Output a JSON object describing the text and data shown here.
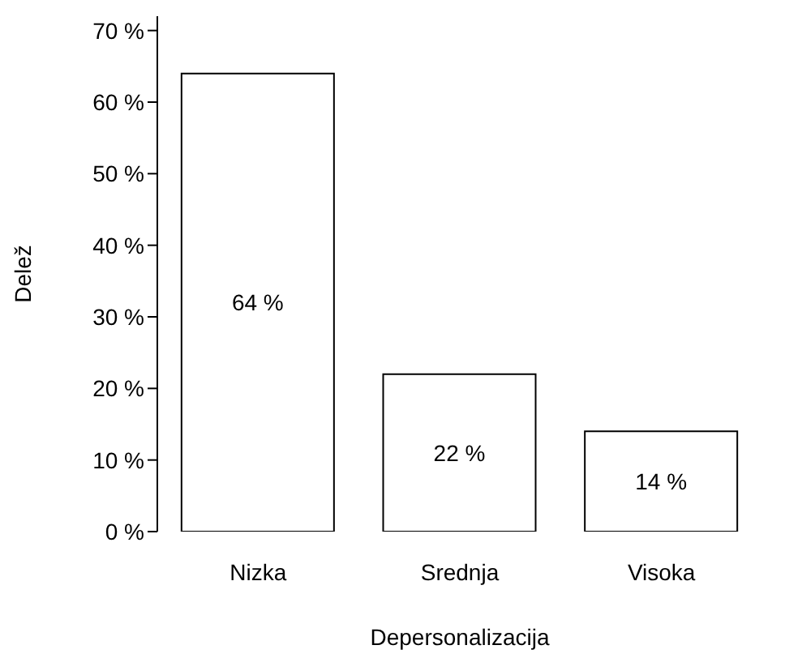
{
  "chart_data": {
    "type": "bar",
    "xlabel": "Depersonalizacija",
    "ylabel": "Delež",
    "categories": [
      "Nizka",
      "Srednja",
      "Visoka"
    ],
    "values": [
      64,
      22,
      14
    ],
    "value_labels": [
      "64 %",
      "22 %",
      "14 %"
    ],
    "color": "#ffffff",
    "ylim": [
      0,
      72
    ],
    "yticks": [
      {
        "value": 0,
        "label": "0 %"
      },
      {
        "value": 10,
        "label": "10 %"
      },
      {
        "value": 20,
        "label": "20 %"
      },
      {
        "value": 30,
        "label": "30 %"
      },
      {
        "value": 40,
        "label": "40 %"
      },
      {
        "value": 50,
        "label": "50 %"
      },
      {
        "value": 60,
        "label": "60 %"
      },
      {
        "value": 70,
        "label": "70 %"
      }
    ],
    "grid": false,
    "legend": false
  }
}
